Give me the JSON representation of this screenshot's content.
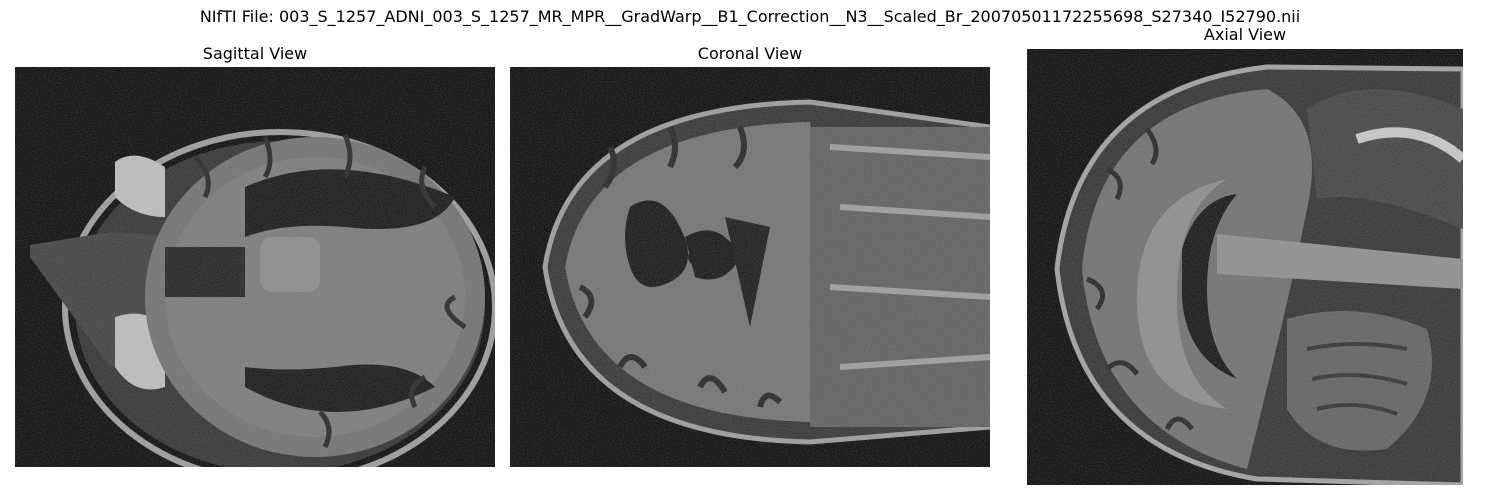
{
  "figure": {
    "suptitle": "NIfTI File: 003_S_1257_ADNI_003_S_1257_MR_MPR__GradWarp__B1_Correction__N3__Scaled_Br_20070501172255698_S27340_I52790.nii"
  },
  "panels": [
    {
      "title": "Sagittal View",
      "image": "brain-mri-axial-slice"
    },
    {
      "title": "Coronal View",
      "image": "brain-mri-horizontal-slice"
    },
    {
      "title": "Axial View",
      "image": "brain-mri-midsagittal-slice"
    }
  ]
}
